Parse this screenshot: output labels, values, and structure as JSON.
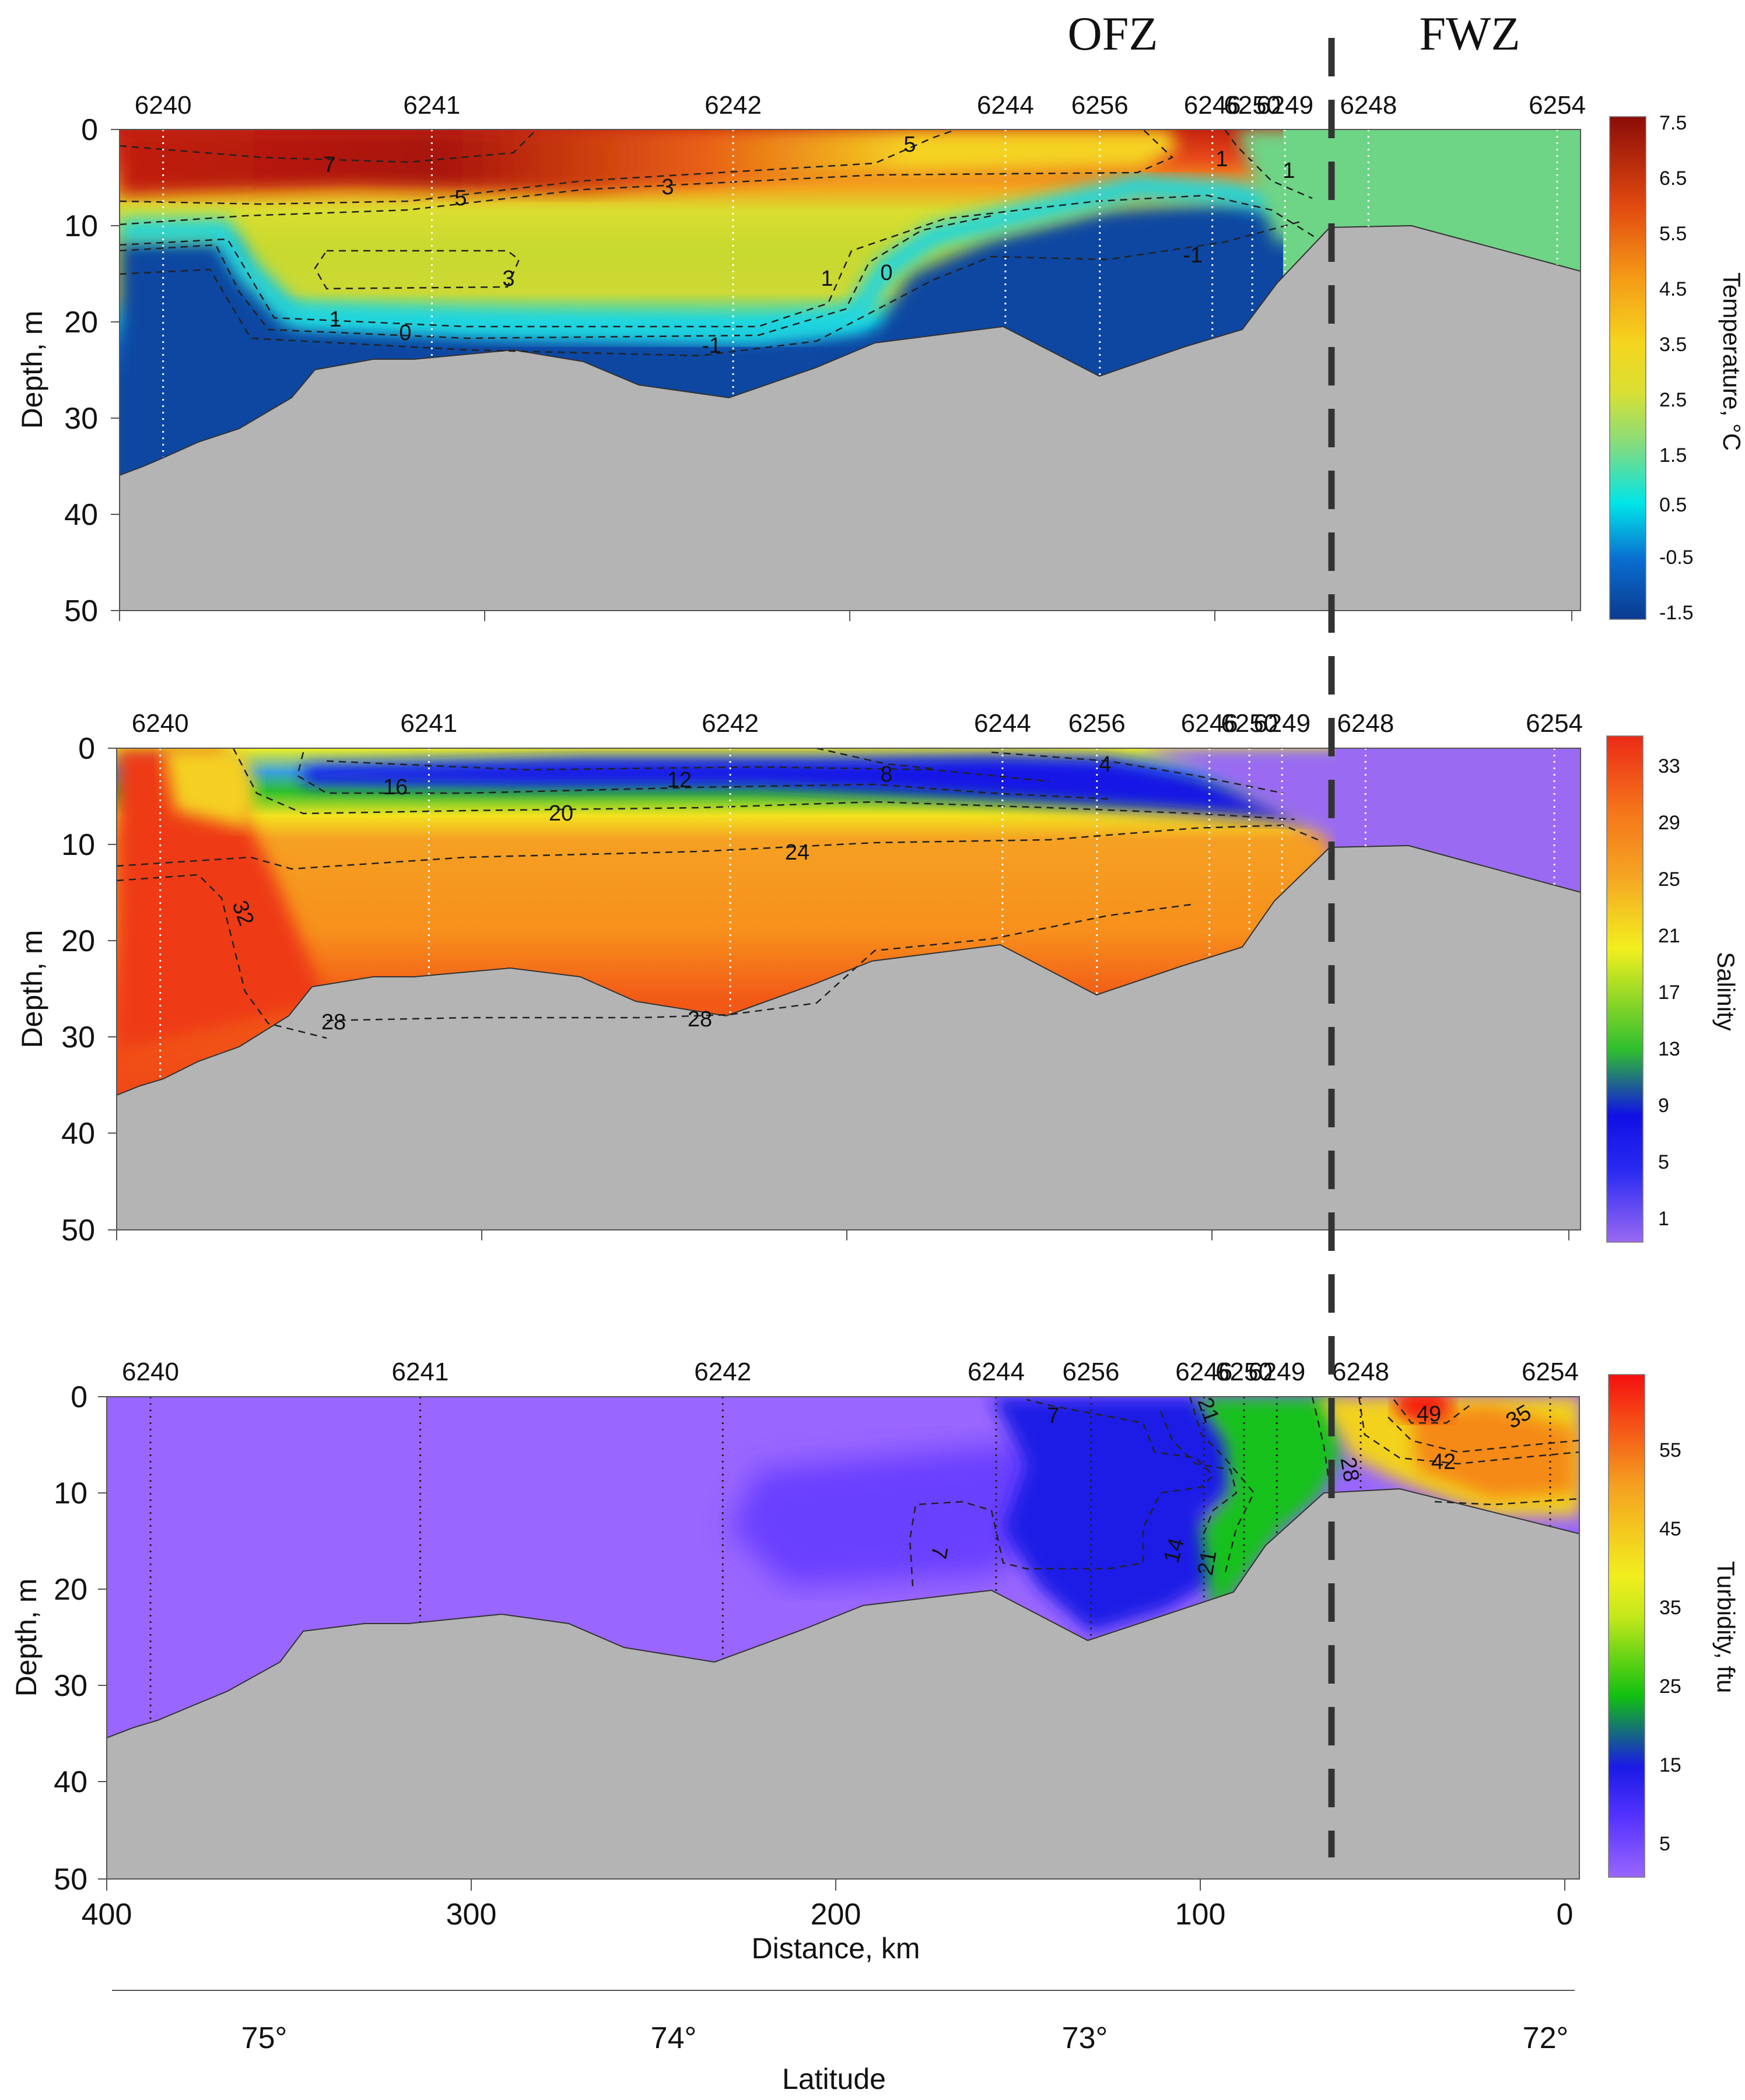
{
  "zones": {
    "left": "OFZ",
    "right": "FWZ"
  },
  "chart_data": [
    {
      "type": "section-contour",
      "variable": "Temperature",
      "colorbar_label": "Temperature, °C",
      "ylabel": "Depth, m",
      "ylim": [
        0,
        50
      ],
      "y_ticks": [
        "0",
        "10",
        "20",
        "30",
        "40",
        "50"
      ],
      "colorbar_ticks": [
        "7.5",
        "6.5",
        "5.5",
        "4.5",
        "3.5",
        "2.5",
        "1.5",
        "0.5",
        "-0.5",
        "-1.5"
      ],
      "colorbar_range": [
        -1.5,
        7.5
      ],
      "colors": [
        "#0b3a8f",
        "#0a6ed1",
        "#00e5e8",
        "#7ddc84",
        "#d9e034",
        "#f5d51e",
        "#f59a16",
        "#e24a10",
        "#8b0c08"
      ],
      "stations": [
        "6240",
        "6241",
        "6242",
        "6244",
        "6256",
        "6246",
        "6250",
        "6249",
        "6248",
        "6254"
      ],
      "station_distance_km": [
        388,
        314,
        231,
        156,
        130,
        99,
        88,
        79,
        56,
        4
      ],
      "contour_labels": [
        "7",
        "5",
        "5",
        "3",
        "3",
        "1",
        "0",
        "1",
        "0",
        "-1",
        "-1",
        "1",
        "1"
      ]
    },
    {
      "type": "section-contour",
      "variable": "Salinity",
      "colorbar_label": "Salinity",
      "ylabel": "Depth, m",
      "ylim": [
        0,
        50
      ],
      "y_ticks": [
        "0",
        "10",
        "20",
        "30",
        "40",
        "50"
      ],
      "colorbar_ticks": [
        "33",
        "29",
        "25",
        "21",
        "17",
        "13",
        "9",
        "5",
        "1"
      ],
      "colorbar_range": [
        1,
        33
      ],
      "colors": [
        "#9a6af2",
        "#1010e6",
        "#2fbf2f",
        "#f2ef1f",
        "#f5a623",
        "#f5761a",
        "#ec2a18"
      ],
      "stations": [
        "6240",
        "6241",
        "6242",
        "6244",
        "6256",
        "6246",
        "6250",
        "6249",
        "6248",
        "6254"
      ],
      "station_distance_km": [
        388,
        314,
        231,
        156,
        130,
        99,
        88,
        79,
        56,
        4
      ],
      "contour_labels": [
        "32",
        "28",
        "28",
        "24",
        "20",
        "16",
        "12",
        "8",
        "4"
      ]
    },
    {
      "type": "section-contour",
      "variable": "Turbidity",
      "colorbar_label": "Turbidity, ftu",
      "ylabel": "Depth, m",
      "ylim": [
        0,
        50
      ],
      "y_ticks": [
        "0",
        "10",
        "20",
        "30",
        "40",
        "50"
      ],
      "colorbar_ticks": [
        "55",
        "45",
        "35",
        "25",
        "15",
        "5"
      ],
      "colorbar_range": [
        0,
        62
      ],
      "colors": [
        "#9966ff",
        "#1a1ae6",
        "#11c011",
        "#f2ee1e",
        "#f5a020",
        "#f51010"
      ],
      "stations": [
        "6240",
        "6241",
        "6242",
        "6244",
        "6256",
        "6246",
        "6250",
        "6249",
        "6248",
        "6254"
      ],
      "station_distance_km": [
        388,
        314,
        231,
        156,
        130,
        99,
        88,
        79,
        56,
        4
      ],
      "contour_labels": [
        "7",
        "7",
        "14",
        "21",
        "21",
        "28",
        "35",
        "42",
        "49"
      ],
      "xlabel": "Distance, km",
      "x_ticks": [
        "400",
        "300",
        "200",
        "100",
        "0"
      ],
      "xlim": [
        400,
        0
      ],
      "secondary_xlabel": "Latitude",
      "secondary_x_ticks": [
        "75°",
        "74°",
        "73°",
        "72°"
      ]
    }
  ]
}
